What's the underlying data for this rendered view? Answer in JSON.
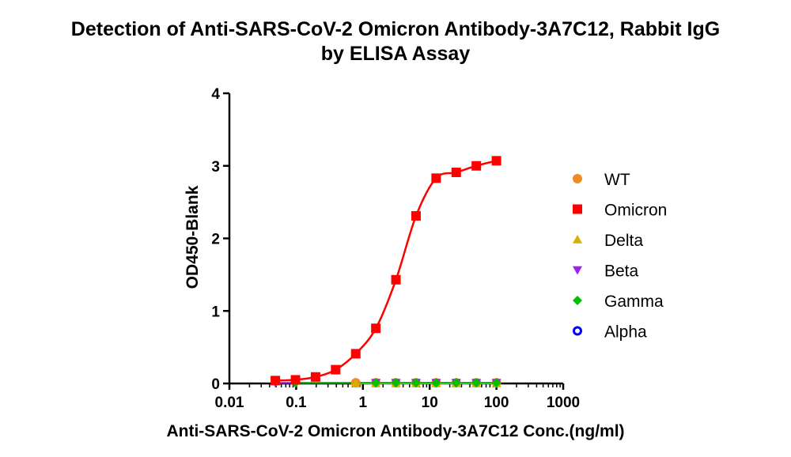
{
  "chart_data": {
    "type": "scatter",
    "title": [
      "Detection of Anti-SARS-CoV-2 Omicron Antibody-3A7C12, Rabbit IgG",
      "by ELISA Assay"
    ],
    "xlabel": "Anti-SARS-CoV-2 Omicron Antibody-3A7C12 Conc.(ng/ml)",
    "ylabel": "OD450-Blank",
    "xscale": "log",
    "xlim": [
      0.01,
      1000
    ],
    "ylim": [
      0,
      4
    ],
    "xticks": [
      "0.01",
      "0.1",
      "1",
      "10",
      "100",
      "1000"
    ],
    "yticks": [
      "0",
      "1",
      "2",
      "3",
      "4"
    ],
    "legend_position": "right",
    "series": [
      {
        "name": "WT",
        "marker": "circle",
        "color": "#f08a24",
        "x": [
          0.781,
          1.5625,
          3.125,
          6.25,
          12.5,
          25,
          50,
          100
        ],
        "y": [
          0.01,
          0.01,
          0.01,
          0.01,
          0.01,
          0.01,
          0.01,
          0.01
        ]
      },
      {
        "name": "Omicron",
        "marker": "square",
        "color": "#ff0000",
        "fit_curve": true,
        "x": [
          0.0488,
          0.0977,
          0.1953,
          0.3906,
          0.7813,
          1.5625,
          3.125,
          6.25,
          12.5,
          25,
          50,
          100
        ],
        "y": [
          0.04,
          0.05,
          0.09,
          0.19,
          0.41,
          0.76,
          1.43,
          2.31,
          2.83,
          2.91,
          3.0,
          3.07
        ]
      },
      {
        "name": "Delta",
        "marker": "triangle-up",
        "color": "#d4b000",
        "x": [
          0.781,
          1.5625,
          3.125,
          6.25,
          12.5,
          25,
          50,
          100
        ],
        "y": [
          0.0,
          0.0,
          0.0,
          0.0,
          0.0,
          0.0,
          0.0,
          0.0
        ]
      },
      {
        "name": " Beta",
        "marker": "triangle-down",
        "color": "#a020f0",
        "x": [
          0.0488,
          1.5625,
          3.125,
          6.25,
          12.5,
          25,
          50,
          100
        ],
        "y": [
          0.01,
          0.01,
          0.01,
          0.01,
          0.01,
          0.01,
          0.01,
          0.01
        ]
      },
      {
        "name": "Gamma",
        "marker": "diamond",
        "color": "#00c000",
        "x": [
          0.0977,
          1.5625,
          3.125,
          6.25,
          12.5,
          25,
          50,
          100
        ],
        "y": [
          0.01,
          0.01,
          0.01,
          0.01,
          0.01,
          0.01,
          0.01,
          0.01
        ]
      },
      {
        "name": "Alpha",
        "marker": "open-circle",
        "color": "#0000ff",
        "x": [],
        "y": []
      }
    ]
  }
}
